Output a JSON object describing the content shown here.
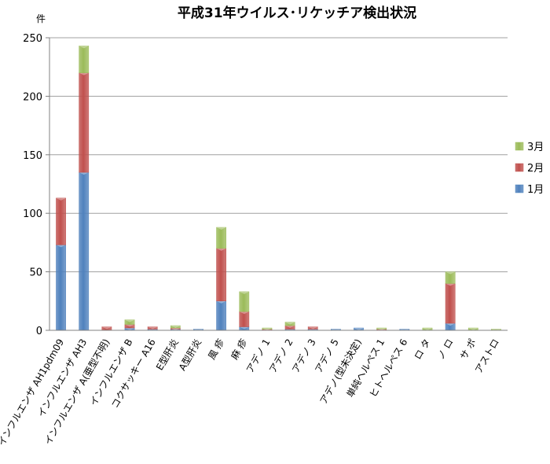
{
  "chart_data": {
    "type": "bar",
    "stacked": true,
    "title": "平成31年ウイルス･リケッチア検出状況",
    "unit_label": "件",
    "ylim": [
      0,
      250
    ],
    "yticks": [
      0,
      50,
      100,
      150,
      200,
      250
    ],
    "grid": true,
    "legend_position": "right",
    "categories": [
      "インフルエンザ AH1pdm09",
      "インフルエンザ AH3",
      "インフルエンザ A(亜型不明)",
      "インフルエンザ B",
      "コクサッキー A16",
      "E型肝炎",
      "A型肝炎",
      "風 疹",
      "麻 疹",
      "アデノ 1",
      "アデノ 2",
      "アデノ 3",
      "アデノ 5",
      "アデノ(型未決定)",
      "単純ヘルペス 1",
      "ヒトヘルペス 6",
      "ロ タ",
      "ノ ロ",
      "サ ポ",
      "アストロ"
    ],
    "series": [
      {
        "name": "1月",
        "color": "#4f81bd",
        "values": [
          73,
          135,
          0,
          2,
          1,
          1,
          1,
          25,
          3,
          0,
          1,
          1,
          1,
          2,
          0,
          1,
          0,
          6,
          0,
          0
        ]
      },
      {
        "name": "2月",
        "color": "#c0504d",
        "values": [
          40,
          85,
          3,
          3,
          2,
          1,
          0,
          45,
          13,
          1,
          3,
          2,
          0,
          0,
          1,
          0,
          0,
          34,
          0,
          0
        ]
      },
      {
        "name": "3月",
        "color": "#9bbb59",
        "values": [
          0,
          23,
          0,
          4,
          0,
          2,
          0,
          18,
          17,
          1,
          3,
          0,
          0,
          0,
          1,
          0,
          2,
          10,
          2,
          1
        ]
      }
    ]
  }
}
